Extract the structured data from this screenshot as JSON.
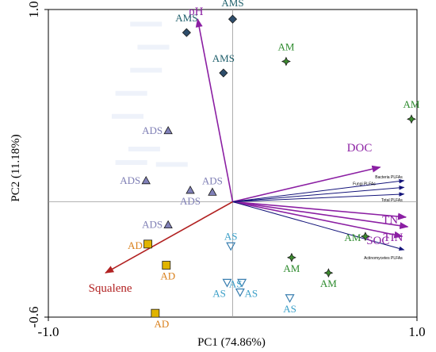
{
  "chart_data": {
    "type": "scatter",
    "subtype": "pca-biplot",
    "xlabel": "PC1 (74.86%)",
    "ylabel": "PC2 (11.18%)",
    "xlim": [
      -1.0,
      1.0
    ],
    "ylim": [
      -0.6,
      1.0
    ],
    "x_ticks": [
      "-1.0",
      "1.0"
    ],
    "y_ticks": [
      "1.0",
      "-0.6"
    ],
    "grid": false,
    "zero_lines": true,
    "groups": [
      {
        "name": "AMS",
        "marker": "diamond",
        "color": "#2e4d6b",
        "label_color": "#1f5f6b",
        "points": [
          [
            -0.25,
            0.88
          ],
          [
            0.0,
            0.95
          ],
          [
            -0.05,
            0.67
          ]
        ]
      },
      {
        "name": "AM",
        "marker": "star4",
        "color": "#3c8a2e",
        "label_color": "#2e8b2e",
        "points": [
          [
            0.29,
            0.73
          ],
          [
            0.97,
            0.43
          ],
          [
            0.72,
            -0.18
          ],
          [
            0.32,
            -0.29
          ],
          [
            0.52,
            -0.37
          ]
        ]
      },
      {
        "name": "ADS",
        "marker": "triangle-up",
        "color": "#8080b8",
        "label_color": "#7f7fb5",
        "points": [
          [
            -0.35,
            0.37
          ],
          [
            -0.47,
            0.11
          ],
          [
            -0.23,
            0.06
          ],
          [
            -0.11,
            0.05
          ],
          [
            -0.35,
            -0.12
          ]
        ]
      },
      {
        "name": "AD",
        "marker": "square",
        "color": "#e0b400",
        "label_color": "#d97f1a",
        "points": [
          [
            -0.46,
            -0.22
          ],
          [
            -0.36,
            -0.33
          ],
          [
            -0.42,
            -0.58
          ]
        ]
      },
      {
        "name": "AS",
        "marker": "triangle-down",
        "color": "#9fd0e8",
        "label_color": "#3a9fc8",
        "points": [
          [
            -0.01,
            -0.23
          ],
          [
            -0.03,
            -0.42
          ],
          [
            0.05,
            -0.42
          ],
          [
            0.04,
            -0.47
          ],
          [
            0.31,
            -0.5
          ]
        ]
      }
    ],
    "vectors": [
      {
        "name": "pH",
        "x": -0.19,
        "y": 0.95,
        "color": "#8b1fa3"
      },
      {
        "name": "DOC",
        "x": 0.8,
        "y": 0.18,
        "color": "#8b1fa3"
      },
      {
        "name": "TN",
        "x": 0.94,
        "y": -0.08,
        "color": "#8b1fa3"
      },
      {
        "name": "TIN",
        "x": 0.95,
        "y": -0.13,
        "color": "#8b1fa3"
      },
      {
        "name": "SOC",
        "x": 0.92,
        "y": -0.18,
        "color": "#8b1fa3"
      },
      {
        "name": "Squalene",
        "x": -0.69,
        "y": -0.37,
        "color": "#b22222"
      },
      {
        "name": "Bacteria PLFAs",
        "x": 0.93,
        "y": 0.11,
        "color": "#14147a"
      },
      {
        "name": "Fungi PLFAs",
        "x": 0.93,
        "y": 0.075,
        "color": "#14147a"
      },
      {
        "name": "Total PLFAs",
        "x": 0.93,
        "y": 0.04,
        "color": "#14147a"
      },
      {
        "name": "Actinomycetes PLFAs",
        "x": 0.93,
        "y": -0.25,
        "color": "#14147a"
      }
    ]
  }
}
